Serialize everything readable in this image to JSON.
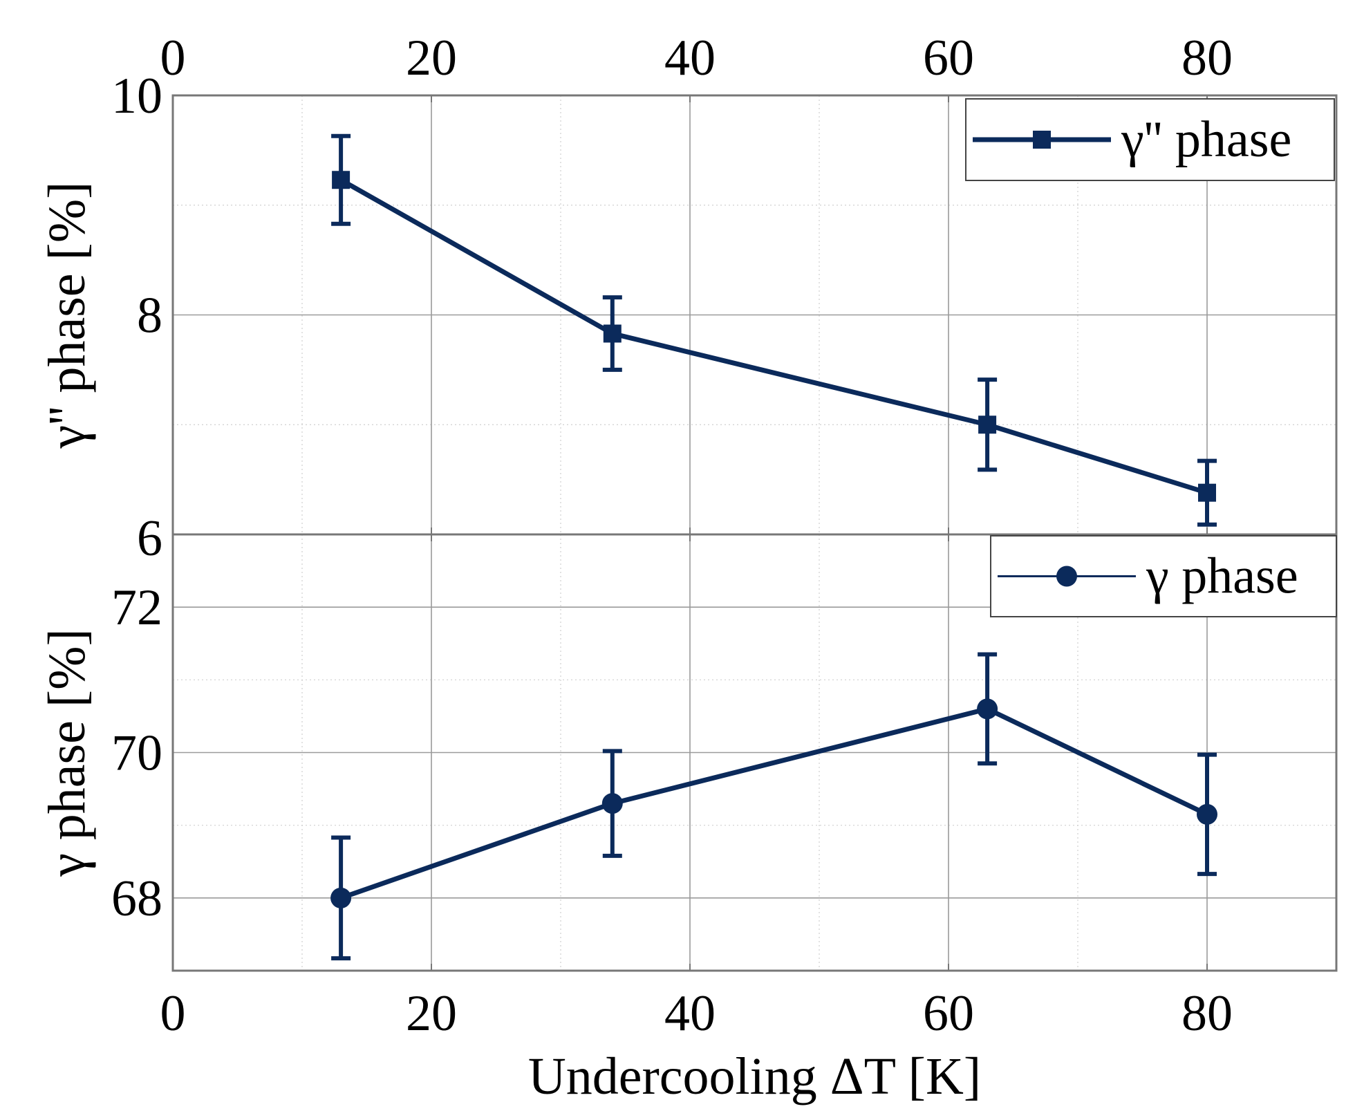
{
  "colors": {
    "series": "#0b2a5b",
    "grid_major": "#9a9a9a",
    "grid_minor": "#cfcfcf",
    "frame": "#777777",
    "legend_border": "#444444",
    "background": "#ffffff"
  },
  "chart_data": [
    {
      "type": "line",
      "panel": "top",
      "title": "",
      "xlabel": "",
      "ylabel": "γ'' phase [%]",
      "xlim": [
        0,
        90
      ],
      "ylim": [
        6,
        10
      ],
      "x_ticks": [
        0,
        20,
        40,
        60,
        80
      ],
      "x_tick_labels": [
        "0",
        "20",
        "40",
        "60",
        "80"
      ],
      "x_tick_position": "top",
      "y_ticks": [
        6,
        8,
        10
      ],
      "y_tick_labels": [
        "6",
        "8",
        "10"
      ],
      "grid": true,
      "legend_position": "top-right",
      "series": [
        {
          "name": "γ'' phase",
          "marker": "square",
          "x": [
            13,
            34,
            63,
            80
          ],
          "y": [
            9.23,
            7.83,
            7.0,
            6.38
          ],
          "error": [
            0.4,
            0.33,
            0.41,
            0.29
          ]
        }
      ]
    },
    {
      "type": "line",
      "panel": "bottom",
      "title": "",
      "xlabel": "Undercooling ΔT [K]",
      "ylabel": "γ phase [%]",
      "xlim": [
        0,
        90
      ],
      "ylim": [
        67,
        73
      ],
      "x_ticks": [
        0,
        20,
        40,
        60,
        80
      ],
      "x_tick_labels": [
        "0",
        "20",
        "40",
        "60",
        "80"
      ],
      "x_tick_position": "bottom",
      "y_ticks": [
        68,
        70,
        72
      ],
      "y_tick_labels": [
        "68",
        "70",
        "72"
      ],
      "grid": true,
      "legend_position": "top-right",
      "series": [
        {
          "name": "γ phase",
          "marker": "circle",
          "x": [
            13,
            34,
            63,
            80
          ],
          "y": [
            68.0,
            69.3,
            70.6,
            69.15
          ],
          "error": [
            0.83,
            0.72,
            0.75,
            0.82
          ]
        }
      ]
    }
  ]
}
